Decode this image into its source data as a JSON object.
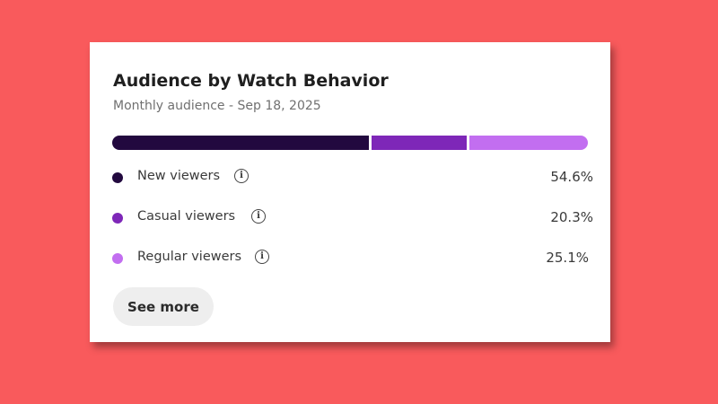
{
  "card": {
    "title": "Audience by Watch Behavior",
    "subtitle": "Monthly audience - Sep 18, 2025",
    "see_more_label": "See more"
  },
  "segments": [
    {
      "label": "New viewers",
      "value_text": "54.6%",
      "value": 54.6,
      "color": "#22093f",
      "info_icon": "info-icon",
      "info_glyph": "i"
    },
    {
      "label": "Casual viewers",
      "value_text": "20.3%",
      "value": 20.3,
      "color": "#7e27b8",
      "info_icon": "info-icon",
      "info_glyph": "i"
    },
    {
      "label": "Regular viewers",
      "value_text": "25.1%",
      "value": 25.1,
      "color": "#c26ef0",
      "info_icon": "info-icon",
      "info_glyph": "i"
    }
  ],
  "colors": {
    "background": "#f95a5c",
    "card": "#ffffff",
    "button": "#eeeeee"
  }
}
